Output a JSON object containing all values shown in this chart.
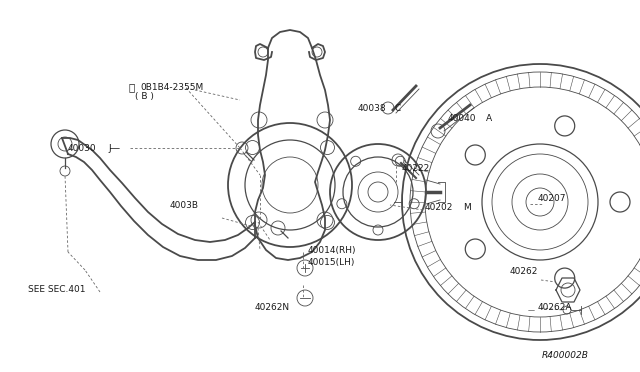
{
  "bg_color": "#ffffff",
  "line_color": "#4a4a4a",
  "label_color": "#1a1a1a",
  "ref_code": "R400002B",
  "figsize": [
    6.4,
    3.72
  ],
  "dpi": 100,
  "xlim": [
    0,
    640
  ],
  "ylim": [
    0,
    372
  ]
}
